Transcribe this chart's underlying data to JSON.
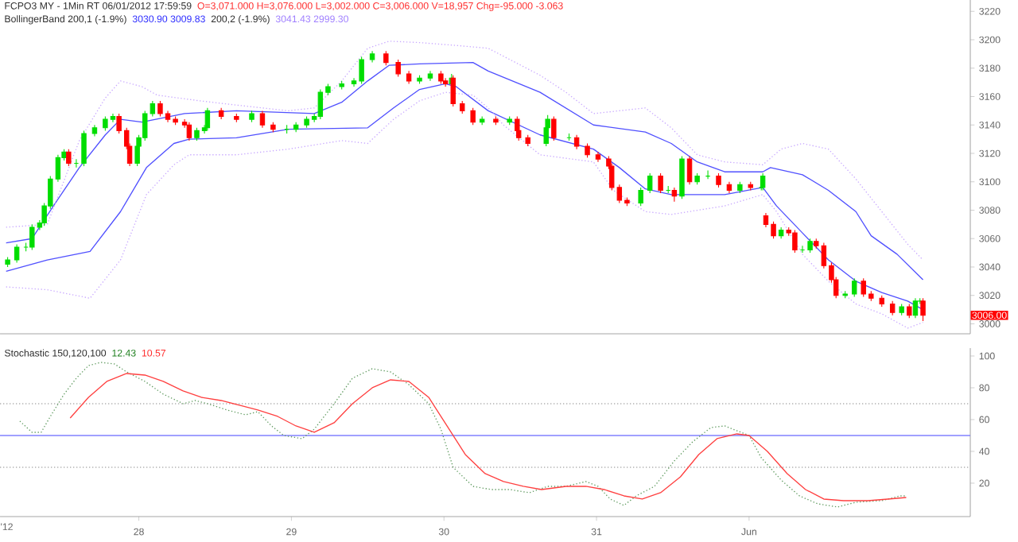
{
  "chart_data": [
    {
      "type": "candlestick",
      "xlim": [
        27.09,
        33.45
      ],
      "ylim": [
        2993,
        3228
      ],
      "yticks": [
        3000,
        3020,
        3040,
        3060,
        3080,
        3100,
        3120,
        3140,
        3160,
        3180,
        3200,
        3220
      ],
      "tick_labels": "y",
      "marker": "none",
      "annotations": [
        "FCPO3 MY - 1Min RT  06/01/2012  17:59:59",
        "O=3,071.000  H=3,076.000  L=3,002.000  C=3,006.000  V=18,957  Chg=-95.000  -3.063",
        "BollingerBand 200,1 (-1.9%)",
        "3030.90  3009.83",
        "200,2 (-1.9%)",
        "3041.43  2999.30",
        "3006.00"
      ],
      "x": [
        27.14,
        27.2,
        27.26,
        27.3,
        27.35,
        27.38,
        27.42,
        27.47,
        27.51,
        27.54,
        27.59,
        27.64,
        27.71,
        27.78,
        27.83,
        27.87,
        27.92,
        27.94,
        27.99,
        28.0,
        28.04,
        28.09,
        28.14,
        28.19,
        28.24,
        28.3,
        28.33,
        28.38,
        28.43,
        28.45,
        28.54,
        28.64,
        28.74,
        28.81,
        28.88,
        28.97,
        29.03,
        29.1,
        29.15,
        29.19,
        29.24,
        29.33,
        29.41,
        29.46,
        29.53,
        29.62,
        29.7,
        29.77,
        29.84,
        29.91,
        29.98,
        30.01,
        30.05,
        30.06,
        30.12,
        30.19,
        30.25,
        30.34,
        30.43,
        30.48,
        30.49,
        30.55,
        30.67,
        30.68,
        30.72,
        30.82,
        30.87,
        30.94,
        31.01,
        31.08,
        31.1,
        31.15,
        31.2,
        31.29,
        31.35,
        31.42,
        31.47,
        31.51,
        31.56,
        31.61,
        31.66,
        31.73,
        31.8,
        31.87,
        31.94,
        32.01,
        32.08,
        32.09,
        32.11,
        32.16,
        32.21,
        32.26,
        32.3,
        32.35,
        32.4,
        32.44,
        32.49,
        32.54,
        32.57,
        32.63,
        32.69,
        32.75,
        32.8,
        32.87,
        32.94,
        33.0,
        33.05,
        33.09,
        33.12,
        33.14
      ],
      "ohlc": [
        [
          3042,
          3047,
          3040,
          3045
        ],
        [
          3045,
          3056,
          3043,
          3054
        ],
        [
          3054,
          3057,
          3051,
          3054
        ],
        [
          3054,
          3070,
          3052,
          3068
        ],
        [
          3068,
          3073,
          3066,
          3071
        ],
        [
          3071,
          3085,
          3069,
          3083
        ],
        [
          3083,
          3104,
          3081,
          3102
        ],
        [
          3102,
          3119,
          3100,
          3117
        ],
        [
          3117,
          3123,
          3115,
          3121
        ],
        [
          3121,
          3123,
          3111,
          3113
        ],
        [
          3113,
          3116,
          3110,
          3113
        ],
        [
          3113,
          3136,
          3111,
          3134
        ],
        [
          3134,
          3140,
          3132,
          3138
        ],
        [
          3138,
          3146,
          3136,
          3144
        ],
        [
          3144,
          3148,
          3142,
          3146
        ],
        [
          3146,
          3148,
          3134,
          3136
        ],
        [
          3136,
          3138,
          3123,
          3125
        ],
        [
          3125,
          3127,
          3111,
          3113
        ],
        [
          3113,
          3127,
          3111,
          3125
        ],
        [
          3125,
          3133,
          3123,
          3131
        ],
        [
          3131,
          3150,
          3129,
          3148
        ],
        [
          3148,
          3157,
          3146,
          3155
        ],
        [
          3155,
          3157,
          3146,
          3148
        ],
        [
          3148,
          3150,
          3142,
          3144
        ],
        [
          3144,
          3146,
          3140,
          3142
        ],
        [
          3142,
          3144,
          3138,
          3140
        ],
        [
          3140,
          3142,
          3129,
          3131
        ],
        [
          3131,
          3138,
          3129,
          3136
        ],
        [
          3136,
          3140,
          3134,
          3138
        ],
        [
          3138,
          3152,
          3136,
          3150
        ],
        [
          3150,
          3152,
          3144,
          3146
        ],
        [
          3146,
          3148,
          3142,
          3144
        ],
        [
          3144,
          3150,
          3142,
          3148
        ],
        [
          3148,
          3150,
          3138,
          3140
        ],
        [
          3140,
          3142,
          3135,
          3137
        ],
        [
          3137,
          3140,
          3134,
          3137
        ],
        [
          3137,
          3142,
          3135,
          3140
        ],
        [
          3140,
          3146,
          3138,
          3144
        ],
        [
          3144,
          3148,
          3142,
          3146
        ],
        [
          3146,
          3165,
          3144,
          3163
        ],
        [
          3163,
          3169,
          3161,
          3167
        ],
        [
          3167,
          3171,
          3165,
          3169
        ],
        [
          3169,
          3173,
          3167,
          3171
        ],
        [
          3171,
          3188,
          3169,
          3186
        ],
        [
          3186,
          3192,
          3184,
          3190
        ],
        [
          3190,
          3192,
          3182,
          3184
        ],
        [
          3184,
          3186,
          3174,
          3176
        ],
        [
          3176,
          3178,
          3169,
          3171
        ],
        [
          3171,
          3175,
          3169,
          3173
        ],
        [
          3173,
          3178,
          3171,
          3176
        ],
        [
          3176,
          3178,
          3169,
          3171
        ],
        [
          3171,
          3173,
          3167,
          3169
        ],
        [
          3169,
          3176,
          3167,
          3173
        ],
        [
          3173,
          3175,
          3153,
          3155
        ],
        [
          3155,
          3157,
          3148,
          3150
        ],
        [
          3150,
          3152,
          3140,
          3142
        ],
        [
          3142,
          3146,
          3140,
          3144
        ],
        [
          3144,
          3146,
          3140,
          3142
        ],
        [
          3142,
          3146,
          3140,
          3144
        ],
        [
          3144,
          3146,
          3134,
          3136
        ],
        [
          3136,
          3138,
          3129,
          3131
        ],
        [
          3131,
          3133,
          3125,
          3127
        ],
        [
          3127,
          3140,
          3125,
          3138
        ],
        [
          3138,
          3147,
          3136,
          3144
        ],
        [
          3144,
          3146,
          3129,
          3131
        ],
        [
          3131,
          3134,
          3129,
          3131
        ],
        [
          3131,
          3133,
          3123,
          3125
        ],
        [
          3125,
          3127,
          3117,
          3119
        ],
        [
          3119,
          3121,
          3114,
          3116
        ],
        [
          3116,
          3118,
          3109,
          3111
        ],
        [
          3111,
          3113,
          3094,
          3096
        ],
        [
          3096,
          3098,
          3085,
          3087
        ],
        [
          3087,
          3089,
          3083,
          3085
        ],
        [
          3085,
          3096,
          3083,
          3094
        ],
        [
          3094,
          3106,
          3092,
          3104
        ],
        [
          3104,
          3106,
          3092,
          3094
        ],
        [
          3094,
          3097,
          3092,
          3094
        ],
        [
          3094,
          3096,
          3086,
          3090
        ],
        [
          3090,
          3118,
          3088,
          3116
        ],
        [
          3116,
          3118,
          3098,
          3100
        ],
        [
          3100,
          3106,
          3098,
          3104
        ],
        [
          3104,
          3108,
          3102,
          3104
        ],
        [
          3104,
          3106,
          3096,
          3098
        ],
        [
          3098,
          3100,
          3092,
          3094
        ],
        [
          3094,
          3100,
          3092,
          3098
        ],
        [
          3098,
          3100,
          3094,
          3096
        ],
        [
          3096,
          3099,
          3094,
          3096
        ],
        [
          3096,
          3106,
          3094,
          3104
        ],
        [
          3076,
          3078,
          3068,
          3070
        ],
        [
          3070,
          3072,
          3060,
          3062
        ],
        [
          3062,
          3068,
          3060,
          3066
        ],
        [
          3066,
          3068,
          3062,
          3064
        ],
        [
          3064,
          3066,
          3050,
          3052
        ],
        [
          3052,
          3055,
          3050,
          3052
        ],
        [
          3052,
          3060,
          3050,
          3058
        ],
        [
          3058,
          3060,
          3053,
          3055
        ],
        [
          3055,
          3057,
          3039,
          3041
        ],
        [
          3041,
          3043,
          3029,
          3031
        ],
        [
          3031,
          3033,
          3018,
          3020
        ],
        [
          3020,
          3023,
          3018,
          3021
        ],
        [
          3021,
          3032,
          3019,
          3030
        ],
        [
          3030,
          3032,
          3019,
          3021
        ],
        [
          3021,
          3023,
          3016,
          3018
        ],
        [
          3018,
          3020,
          3012,
          3014
        ],
        [
          3014,
          3016,
          3006,
          3008
        ],
        [
          3008,
          3014,
          3006,
          3012
        ],
        [
          3012,
          3014,
          3004,
          3006
        ],
        [
          3006,
          3018,
          3004,
          3016
        ],
        [
          3016,
          3018,
          3014,
          3016
        ],
        [
          3016,
          3018,
          3002,
          3006
        ]
      ],
      "series": [
        {
          "type": "line",
          "color": "#5050ff",
          "line_style": "solid",
          "x": [
            27.13,
            27.3,
            27.44,
            27.61,
            27.78,
            27.88,
            28.02,
            28.3,
            28.64,
            29.15,
            29.33,
            29.5,
            29.64,
            29.84,
            30.19,
            30.29,
            30.63,
            30.98,
            31.32,
            31.49,
            31.66,
            31.84,
            32.09,
            32.14,
            32.35,
            32.52,
            32.7,
            32.8,
            32.97,
            33.14
          ],
          "values": [
            3057,
            3060,
            3083,
            3110,
            3133,
            3144,
            3142,
            3148,
            3150,
            3148,
            3156,
            3171,
            3182,
            3183,
            3184,
            3178,
            3163,
            3140,
            3135,
            3127,
            3114,
            3107,
            3107,
            3110,
            3105,
            3094,
            3079,
            3062,
            3049,
            3031
          ]
        },
        {
          "type": "line",
          "color": "#5050ff",
          "line_style": "solid",
          "x": [
            27.13,
            27.4,
            27.68,
            27.88,
            28.05,
            28.23,
            28.33,
            28.64,
            28.98,
            29.5,
            29.67,
            29.84,
            30.01,
            30.08,
            30.29,
            30.63,
            30.98,
            31.15,
            31.32,
            31.49,
            31.84,
            32.09,
            32.18,
            32.35,
            32.52,
            32.7,
            32.87,
            33.04,
            33.14
          ],
          "values": [
            3037,
            3045,
            3051,
            3079,
            3110,
            3127,
            3130,
            3131,
            3137,
            3138,
            3152,
            3165,
            3169,
            3167,
            3150,
            3133,
            3123,
            3110,
            3095,
            3091,
            3091,
            3096,
            3083,
            3064,
            3045,
            3030,
            3022,
            3016,
            3010
          ]
        },
        {
          "type": "line",
          "color": "#c8a8ff",
          "line_style": "dotted",
          "x": [
            27.13,
            27.4,
            27.61,
            27.78,
            27.88,
            28.02,
            28.12,
            28.4,
            28.64,
            28.98,
            29.15,
            29.33,
            29.5,
            29.64,
            29.84,
            30.08,
            30.29,
            30.63,
            30.8,
            30.98,
            31.15,
            31.32,
            31.49,
            31.66,
            31.84,
            32.09,
            32.21,
            32.35,
            32.52,
            32.7,
            32.87,
            33.04,
            33.14
          ],
          "values": [
            3068,
            3070,
            3129,
            3159,
            3171,
            3167,
            3161,
            3157,
            3154,
            3150,
            3152,
            3171,
            3194,
            3199,
            3198,
            3196,
            3194,
            3175,
            3163,
            3148,
            3150,
            3152,
            3138,
            3119,
            3114,
            3112,
            3123,
            3127,
            3123,
            3102,
            3079,
            3056,
            3045
          ]
        },
        {
          "type": "line",
          "color": "#c8a8ff",
          "line_style": "dotted",
          "x": [
            27.13,
            27.4,
            27.68,
            27.88,
            28.05,
            28.23,
            28.33,
            28.64,
            28.98,
            29.33,
            29.5,
            29.67,
            29.84,
            30.01,
            30.19,
            30.29,
            30.39,
            30.63,
            30.98,
            31.11,
            31.32,
            31.49,
            31.84,
            32.09,
            32.18,
            32.35,
            32.52,
            32.7,
            32.87,
            33.04,
            33.14
          ],
          "values": [
            3026,
            3024,
            3018,
            3045,
            3091,
            3112,
            3119,
            3119,
            3123,
            3129,
            3127,
            3144,
            3157,
            3163,
            3161,
            3152,
            3140,
            3119,
            3114,
            3094,
            3079,
            3077,
            3083,
            3091,
            3079,
            3049,
            3030,
            3014,
            3007,
            2997,
            3001
          ]
        }
      ]
    },
    {
      "type": "line",
      "xlim": [
        27.09,
        33.45
      ],
      "ylim": [
        -1,
        105
      ],
      "yticks": [
        20,
        40,
        60,
        80,
        100
      ],
      "xticks": [
        28,
        29,
        30,
        31,
        {
          "value": 32,
          "label": "Jun"
        }
      ],
      "marker": "none",
      "annotations": [
        "Stochastic 150,120,100",
        "12.43",
        "10.57",
        "'12"
      ],
      "ref_lines": [
        {
          "axis": "y",
          "value": 70,
          "color": "#b0b0b0",
          "line_style": "dotted"
        },
        {
          "axis": "y",
          "value": 50,
          "color": "#8080ff",
          "line_style": "solid"
        },
        {
          "axis": "y",
          "value": 30,
          "color": "#b0b0b0",
          "line_style": "dotted"
        }
      ],
      "series": [
        {
          "color": "#5f9a5f",
          "line_style": "dotted",
          "x": [
            27.22,
            27.3,
            27.36,
            27.42,
            27.51,
            27.59,
            27.67,
            27.75,
            27.84,
            27.92,
            28.04,
            28.16,
            28.29,
            28.37,
            28.45,
            28.58,
            28.7,
            28.78,
            28.87,
            28.95,
            29.07,
            29.15,
            29.28,
            29.4,
            29.53,
            29.65,
            29.77,
            29.9,
            29.98,
            30.06,
            30.19,
            30.31,
            30.43,
            30.56,
            30.68,
            30.8,
            30.93,
            31.01,
            31.09,
            31.18,
            31.26,
            31.38,
            31.51,
            31.63,
            31.75,
            31.84,
            31.92,
            32.0,
            32.08,
            32.21,
            32.33,
            32.45,
            32.58,
            32.7,
            32.87,
            32.99,
            33.03
          ],
          "values": [
            59,
            52,
            52,
            62,
            76,
            86,
            94,
            96,
            95,
            90,
            84,
            76,
            70,
            72,
            70,
            66,
            63,
            65,
            56,
            50,
            48,
            54,
            70,
            86,
            92,
            90,
            82,
            70,
            54,
            30,
            18,
            16,
            16,
            14,
            18,
            18,
            21,
            18,
            10,
            6,
            12,
            18,
            34,
            46,
            55,
            56,
            53,
            50,
            36,
            22,
            12,
            7,
            5,
            8,
            9,
            12,
            12
          ]
        },
        {
          "color": "#ff4040",
          "line_style": "solid",
          "x": [
            27.55,
            27.67,
            27.79,
            27.92,
            28.04,
            28.16,
            28.29,
            28.41,
            28.54,
            28.66,
            28.78,
            28.91,
            29.03,
            29.15,
            29.28,
            29.4,
            29.53,
            29.65,
            29.77,
            29.9,
            30.02,
            30.14,
            30.27,
            30.39,
            30.52,
            30.64,
            30.8,
            30.93,
            31.05,
            31.18,
            31.3,
            31.42,
            31.55,
            31.67,
            31.79,
            31.92,
            32.0,
            32.12,
            32.25,
            32.37,
            32.49,
            32.62,
            32.78,
            32.91,
            33.03
          ],
          "values": [
            61,
            74,
            84,
            89,
            88,
            84,
            78,
            74,
            72,
            69,
            66,
            62,
            56,
            52,
            58,
            70,
            80,
            85,
            84,
            74,
            56,
            38,
            26,
            21,
            18,
            16,
            18,
            18,
            16,
            12,
            10,
            14,
            24,
            38,
            48,
            51,
            50,
            40,
            26,
            16,
            10,
            9,
            9,
            10,
            11
          ]
        }
      ]
    }
  ]
}
